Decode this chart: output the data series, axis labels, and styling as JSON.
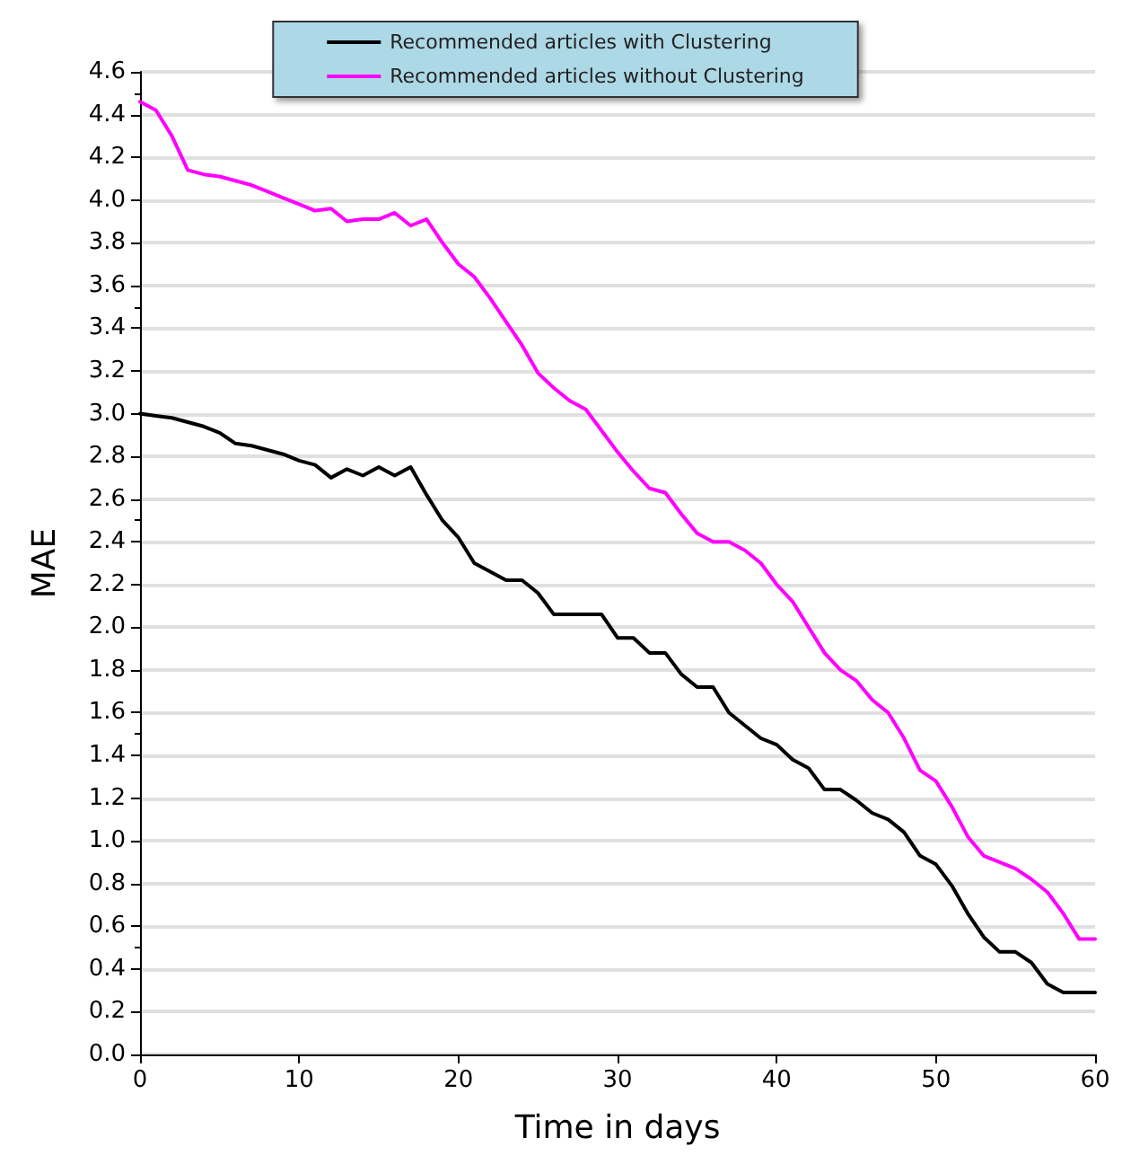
{
  "chart_data": {
    "type": "line",
    "xlabel": "Time in days",
    "ylabel": "MAE",
    "x": [
      0,
      1,
      2,
      3,
      4,
      5,
      6,
      7,
      8,
      9,
      10,
      11,
      12,
      13,
      14,
      15,
      16,
      17,
      18,
      19,
      20,
      21,
      22,
      23,
      24,
      25,
      26,
      27,
      28,
      29,
      30,
      31,
      32,
      33,
      34,
      35,
      36,
      37,
      38,
      39,
      40,
      41,
      42,
      43,
      44,
      45,
      46,
      47,
      48,
      49,
      50,
      51,
      52,
      53,
      54,
      55,
      56,
      57,
      58,
      59,
      60
    ],
    "series": [
      {
        "name": "Recommended articles with Clustering",
        "color": "#000000",
        "values": [
          3.0,
          2.99,
          2.98,
          2.96,
          2.94,
          2.91,
          2.86,
          2.85,
          2.83,
          2.81,
          2.78,
          2.76,
          2.7,
          2.74,
          2.71,
          2.75,
          2.71,
          2.75,
          2.62,
          2.5,
          2.42,
          2.3,
          2.26,
          2.22,
          2.22,
          2.16,
          2.06,
          2.06,
          2.06,
          2.06,
          1.95,
          1.95,
          1.88,
          1.88,
          1.78,
          1.72,
          1.72,
          1.6,
          1.54,
          1.48,
          1.45,
          1.38,
          1.34,
          1.24,
          1.24,
          1.19,
          1.13,
          1.1,
          1.04,
          0.93,
          0.89,
          0.79,
          0.66,
          0.55,
          0.48,
          0.48,
          0.43,
          0.33,
          0.29,
          0.29,
          0.29
        ]
      },
      {
        "name": "Recommended articles without Clustering",
        "color": "#ff00ff",
        "values": [
          4.46,
          4.42,
          4.3,
          4.14,
          4.12,
          4.11,
          4.09,
          4.07,
          4.04,
          4.01,
          3.98,
          3.95,
          3.96,
          3.9,
          3.91,
          3.91,
          3.94,
          3.88,
          3.91,
          3.8,
          3.7,
          3.64,
          3.54,
          3.43,
          3.32,
          3.19,
          3.12,
          3.06,
          3.02,
          2.92,
          2.82,
          2.73,
          2.65,
          2.63,
          2.53,
          2.44,
          2.4,
          2.4,
          2.36,
          2.3,
          2.2,
          2.12,
          2.0,
          1.88,
          1.8,
          1.75,
          1.66,
          1.6,
          1.48,
          1.33,
          1.28,
          1.16,
          1.02,
          0.93,
          0.9,
          0.87,
          0.82,
          0.76,
          0.66,
          0.54,
          0.54
        ]
      }
    ],
    "xlim": [
      0,
      60
    ],
    "xticks": [
      0,
      10,
      20,
      30,
      40,
      50,
      60
    ],
    "ylim": [
      0,
      4.6
    ],
    "yticks": [
      {
        "value": 0,
        "label": "0.0"
      },
      0.2,
      0.4,
      0.6,
      0.8,
      {
        "value": 1,
        "label": "1.0"
      },
      1.2,
      1.4,
      1.6,
      1.8,
      {
        "value": 2,
        "label": "2.0"
      },
      2.2,
      2.4,
      2.6,
      2.8,
      {
        "value": 3,
        "label": "3.0"
      },
      3.2,
      3.4,
      3.6,
      3.8,
      {
        "value": 4,
        "label": "4.0"
      },
      4.2,
      4.4,
      4.6
    ],
    "grid": "y",
    "legend": "top",
    "marker": "none",
    "line_style": "solid"
  }
}
